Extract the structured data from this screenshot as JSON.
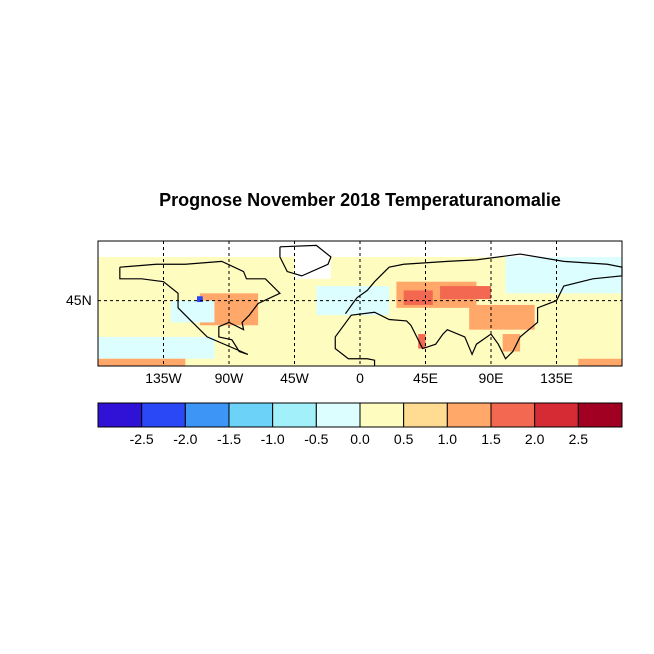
{
  "chart_data": {
    "type": "heatmap",
    "title": "Prognose November 2018 Temperaturanomalie",
    "projection": "cylindrical equidistant",
    "lon_range": [
      -180,
      180
    ],
    "lat_range": [
      0,
      86
    ],
    "x_ticks": [
      {
        "lon": -135,
        "label": "135W"
      },
      {
        "lon": -90,
        "label": "90W"
      },
      {
        "lon": -45,
        "label": "45W"
      },
      {
        "lon": 0,
        "label": "0"
      },
      {
        "lon": 45,
        "label": "45E"
      },
      {
        "lon": 90,
        "label": "90E"
      },
      {
        "lon": 135,
        "label": "135E"
      }
    ],
    "y_ticks": [
      {
        "lat": 45,
        "label": "45N"
      }
    ],
    "grid": "dashed at ticks",
    "background_value_class": "0.0 to 0.5",
    "colorbar": {
      "levels": [
        "-2.5",
        "-2.0",
        "-1.5",
        "-1.0",
        "-0.5",
        "0.0",
        "0.5",
        "1.0",
        "1.5",
        "2.0",
        "2.5"
      ],
      "colors": [
        "#3012d6",
        "#2a48f6",
        "#3d96f6",
        "#6cd2f8",
        "#a2f0fa",
        "#dcfeff",
        "#fffcc0",
        "#ffdc92",
        "#ffa86a",
        "#f26850",
        "#d62a34",
        "#a20022"
      ]
    },
    "anomaly_regions": [
      {
        "lon": [
          25,
          80
        ],
        "lat": [
          40,
          58
        ],
        "value": 1.2
      },
      {
        "lon": [
          30,
          50
        ],
        "lat": [
          42,
          52
        ],
        "value": 1.7
      },
      {
        "lon": [
          55,
          90
        ],
        "lat": [
          46,
          55
        ],
        "value": 1.6
      },
      {
        "lon": [
          75,
          120
        ],
        "lat": [
          25,
          42
        ],
        "value": 1.1
      },
      {
        "lon": [
          -110,
          -70
        ],
        "lat": [
          28,
          50
        ],
        "value": 1.0
      },
      {
        "lon": [
          -130,
          -100
        ],
        "lat": [
          30,
          45
        ],
        "value": -0.3
      },
      {
        "lon": [
          -30,
          20
        ],
        "lat": [
          35,
          55
        ],
        "value": -0.2
      },
      {
        "lon": [
          100,
          180
        ],
        "lat": [
          50,
          75
        ],
        "value": -0.3
      },
      {
        "lon": [
          -180,
          -100
        ],
        "lat": [
          5,
          20
        ],
        "value": -0.2
      },
      {
        "lon": [
          -180,
          -120
        ],
        "lat": [
          0,
          5
        ],
        "value": 1.2
      },
      {
        "lon": [
          150,
          180
        ],
        "lat": [
          0,
          5
        ],
        "value": 1.2
      },
      {
        "lon": [
          -112,
          -108
        ],
        "lat": [
          44,
          48
        ],
        "value": -2.3
      },
      {
        "lon": [
          40,
          45
        ],
        "lat": [
          12,
          22
        ],
        "value": 1.8
      },
      {
        "lon": [
          98,
          110
        ],
        "lat": [
          10,
          22
        ],
        "value": 1.2
      },
      {
        "lon": [
          -45,
          -20
        ],
        "lat": [
          60,
          84
        ],
        "value": null
      }
    ]
  }
}
